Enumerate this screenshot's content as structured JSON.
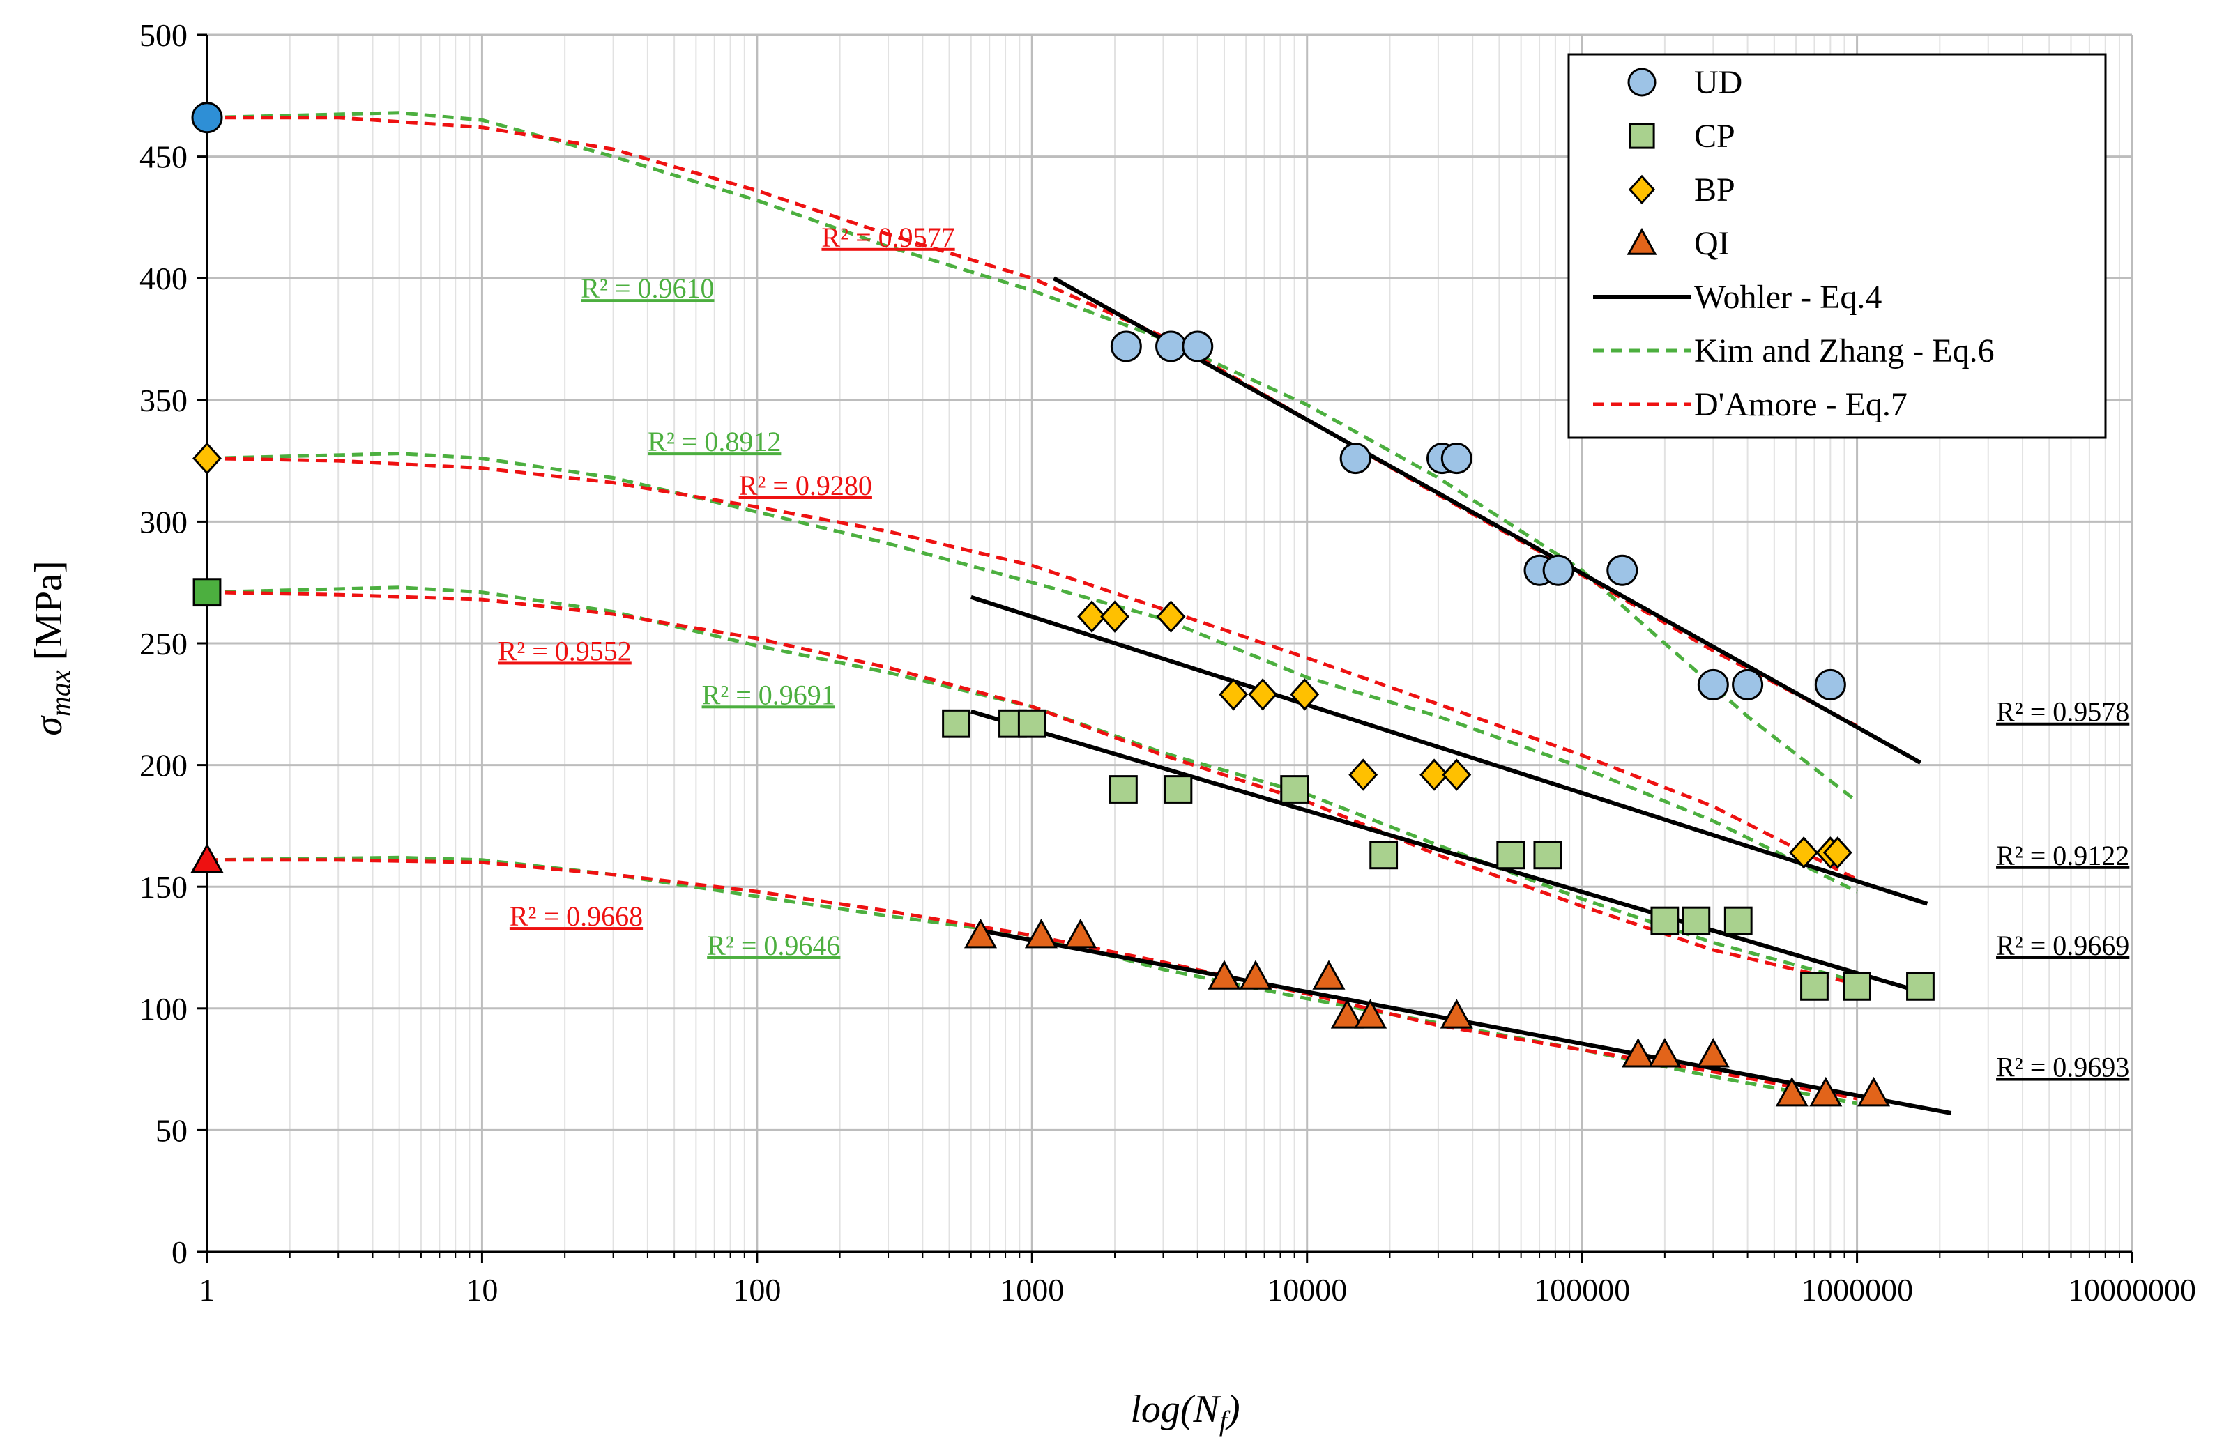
{
  "chart_data": {
    "type": "scatter",
    "xscale": "log",
    "xlim": [
      1,
      10000000
    ],
    "ylim": [
      0,
      500
    ],
    "ystep": 50,
    "grid": true,
    "xlabel": {
      "base": "log(N",
      "sub": "f",
      "close": ")"
    },
    "ylabel": {
      "sym": "σ",
      "sub": "max",
      "unit": " [MPa]"
    },
    "x_tick_labels": [
      "1",
      "10",
      "100",
      "1000",
      "10000",
      "100000",
      "1000000",
      "10000000"
    ],
    "y_tick_labels": [
      "0",
      "50",
      "100",
      "150",
      "200",
      "250",
      "300",
      "350",
      "400",
      "450",
      "500"
    ],
    "colors": {
      "UD": "#9dc3e6",
      "CP": "#a9d18e",
      "BP": "#ffc000",
      "QI": "#e2641a",
      "UD_static": "#2e8fd6",
      "CP_static": "#4caf3f",
      "BP_static": "#ffc000",
      "QI_static": "#ee1111",
      "wohler": "#000000",
      "kim": "#4caf3f",
      "damore": "#ee1111"
    },
    "legend": {
      "placement": "top-right",
      "items": [
        {
          "key": "UD",
          "label": "UD",
          "marker": "circle"
        },
        {
          "key": "CP",
          "label": "CP",
          "marker": "square"
        },
        {
          "key": "BP",
          "label": "BP",
          "marker": "diamond"
        },
        {
          "key": "QI",
          "label": "QI",
          "marker": "triangle"
        },
        {
          "key": "wohler",
          "label": "Wohler - Eq.4",
          "line": "solid"
        },
        {
          "key": "kim",
          "label": "Kim and Zhang - Eq.6",
          "line": "dashed"
        },
        {
          "key": "damore",
          "label": "D'Amore - Eq.7",
          "line": "dashed"
        }
      ]
    },
    "series": [
      {
        "name": "UD",
        "marker": "circle",
        "static": {
          "x": 1,
          "y": 466
        },
        "points": [
          [
            2200,
            372
          ],
          [
            3200,
            372
          ],
          [
            4000,
            372
          ],
          [
            15000,
            326
          ],
          [
            31000,
            326
          ],
          [
            35000,
            326
          ],
          [
            70000,
            280
          ],
          [
            82000,
            280
          ],
          [
            140000,
            280
          ],
          [
            300000,
            233
          ],
          [
            400000,
            233
          ],
          [
            800000,
            233
          ]
        ],
        "wohler": [
          [
            1200,
            400
          ],
          [
            1700000,
            201
          ]
        ],
        "kim": [
          [
            1,
            466
          ],
          [
            5,
            468
          ],
          [
            10,
            465
          ],
          [
            30,
            450
          ],
          [
            100,
            432
          ],
          [
            300,
            413
          ],
          [
            1000,
            395
          ],
          [
            3000,
            375
          ],
          [
            10000,
            348
          ],
          [
            30000,
            318
          ],
          [
            100000,
            280
          ],
          [
            200000,
            250
          ],
          [
            400000,
            220
          ],
          [
            1000000,
            185
          ]
        ],
        "damore": [
          [
            1,
            466
          ],
          [
            3,
            466
          ],
          [
            10,
            462
          ],
          [
            30,
            453
          ],
          [
            100,
            436
          ],
          [
            300,
            418
          ],
          [
            1000,
            400
          ],
          [
            3000,
            376
          ],
          [
            10000,
            342
          ],
          [
            30000,
            311
          ],
          [
            100000,
            278
          ],
          [
            300000,
            247
          ],
          [
            1000000,
            216
          ]
        ]
      },
      {
        "name": "BP",
        "marker": "diamond",
        "static": {
          "x": 1,
          "y": 326
        },
        "points": [
          [
            1650,
            261
          ],
          [
            2000,
            261
          ],
          [
            3200,
            261
          ],
          [
            5400,
            229
          ],
          [
            6900,
            229
          ],
          [
            9800,
            229
          ],
          [
            16000,
            196
          ],
          [
            29000,
            196
          ],
          [
            35000,
            196
          ],
          [
            640000,
            164
          ],
          [
            800000,
            164
          ],
          [
            850000,
            164
          ]
        ],
        "wohler": [
          [
            600,
            269
          ],
          [
            1800000,
            143
          ]
        ],
        "kim": [
          [
            1,
            326
          ],
          [
            5,
            328
          ],
          [
            10,
            326
          ],
          [
            30,
            318
          ],
          [
            100,
            304
          ],
          [
            300,
            291
          ],
          [
            1000,
            275
          ],
          [
            3000,
            260
          ],
          [
            10000,
            236
          ],
          [
            30000,
            220
          ],
          [
            100000,
            199
          ],
          [
            300000,
            177
          ],
          [
            1000000,
            148
          ]
        ],
        "damore": [
          [
            1,
            326
          ],
          [
            3,
            325
          ],
          [
            10,
            322
          ],
          [
            30,
            316
          ],
          [
            100,
            306
          ],
          [
            300,
            296
          ],
          [
            1000,
            282
          ],
          [
            3000,
            264
          ],
          [
            10000,
            244
          ],
          [
            30000,
            225
          ],
          [
            100000,
            204
          ],
          [
            300000,
            183
          ],
          [
            1000000,
            153
          ]
        ]
      },
      {
        "name": "CP",
        "marker": "square",
        "static": {
          "x": 1,
          "y": 271
        },
        "points": [
          [
            530,
            217
          ],
          [
            850,
            217
          ],
          [
            1000,
            217
          ],
          [
            2150,
            190
          ],
          [
            3400,
            190
          ],
          [
            9000,
            190
          ],
          [
            19000,
            163
          ],
          [
            55000,
            163
          ],
          [
            75000,
            163
          ],
          [
            200000,
            136
          ],
          [
            260000,
            136
          ],
          [
            370000,
            136
          ],
          [
            700000,
            109
          ],
          [
            1000000,
            109
          ],
          [
            1700000,
            109
          ]
        ],
        "wohler": [
          [
            600,
            222
          ],
          [
            1800000,
            106
          ]
        ],
        "kim": [
          [
            1,
            271
          ],
          [
            5,
            273
          ],
          [
            10,
            271
          ],
          [
            30,
            263
          ],
          [
            100,
            249
          ],
          [
            300,
            238
          ],
          [
            1000,
            224
          ],
          [
            3000,
            205
          ],
          [
            10000,
            188
          ],
          [
            30000,
            167
          ],
          [
            100000,
            145
          ],
          [
            300000,
            127
          ],
          [
            1000000,
            111
          ]
        ],
        "damore": [
          [
            1,
            271
          ],
          [
            3,
            270
          ],
          [
            10,
            268
          ],
          [
            30,
            262
          ],
          [
            100,
            252
          ],
          [
            300,
            240
          ],
          [
            1000,
            224
          ],
          [
            3000,
            204
          ],
          [
            10000,
            185
          ],
          [
            30000,
            163
          ],
          [
            100000,
            142
          ],
          [
            300000,
            124
          ],
          [
            1000000,
            110
          ]
        ]
      },
      {
        "name": "QI",
        "marker": "triangle",
        "static": {
          "x": 1,
          "y": 161
        },
        "points": [
          [
            650,
            130
          ],
          [
            1080,
            130
          ],
          [
            1500,
            130
          ],
          [
            5000,
            113
          ],
          [
            6500,
            113
          ],
          [
            12000,
            113
          ],
          [
            14000,
            97
          ],
          [
            17000,
            97
          ],
          [
            35000,
            97
          ],
          [
            160000,
            81
          ],
          [
            200000,
            81
          ],
          [
            300000,
            81
          ],
          [
            580000,
            65
          ],
          [
            770000,
            65
          ],
          [
            1150000,
            65
          ]
        ],
        "wohler": [
          [
            650,
            132
          ],
          [
            2200000,
            57
          ]
        ],
        "kim": [
          [
            1,
            161
          ],
          [
            5,
            162
          ],
          [
            10,
            161
          ],
          [
            30,
            155
          ],
          [
            100,
            146
          ],
          [
            300,
            138
          ],
          [
            1000,
            130
          ],
          [
            3000,
            116
          ],
          [
            10000,
            104
          ],
          [
            30000,
            94
          ],
          [
            100000,
            83
          ],
          [
            300000,
            72
          ],
          [
            1000000,
            61
          ]
        ],
        "damore": [
          [
            1,
            161
          ],
          [
            3,
            161
          ],
          [
            10,
            160
          ],
          [
            30,
            155
          ],
          [
            100,
            148
          ],
          [
            300,
            140
          ],
          [
            1000,
            130
          ],
          [
            3000,
            119
          ],
          [
            10000,
            106
          ],
          [
            30000,
            93
          ],
          [
            100000,
            83
          ],
          [
            300000,
            74
          ],
          [
            1000000,
            63
          ]
        ]
      }
    ],
    "annotations": [
      {
        "text": "R² = 0.9577",
        "color": "damore",
        "x": 300,
        "y": 413
      },
      {
        "text": "R² = 0.9610",
        "color": "kim",
        "x": 40,
        "y": 392
      },
      {
        "text": "R² = 0.8912",
        "color": "kim",
        "x": 70,
        "y": 329
      },
      {
        "text": "R² = 0.9280",
        "color": "damore",
        "x": 150,
        "y": 311
      },
      {
        "text": "R² = 0.9552",
        "color": "damore",
        "x": 20,
        "y": 243
      },
      {
        "text": "R² = 0.9691",
        "color": "kim",
        "x": 110,
        "y": 225
      },
      {
        "text": "R² = 0.9668",
        "color": "damore",
        "x": 22,
        "y": 134
      },
      {
        "text": "R² = 0.9646",
        "color": "kim",
        "x": 115,
        "y": 122
      },
      {
        "text": "R² = 0.9578",
        "color": "wohler",
        "x": 5600000,
        "y": 218
      },
      {
        "text": "R² = 0.9122",
        "color": "wohler",
        "x": 5600000,
        "y": 159
      },
      {
        "text": "R² = 0.9669",
        "color": "wohler",
        "x": 5600000,
        "y": 122
      },
      {
        "text": "R² = 0.9693",
        "color": "wohler",
        "x": 5600000,
        "y": 72
      }
    ]
  }
}
